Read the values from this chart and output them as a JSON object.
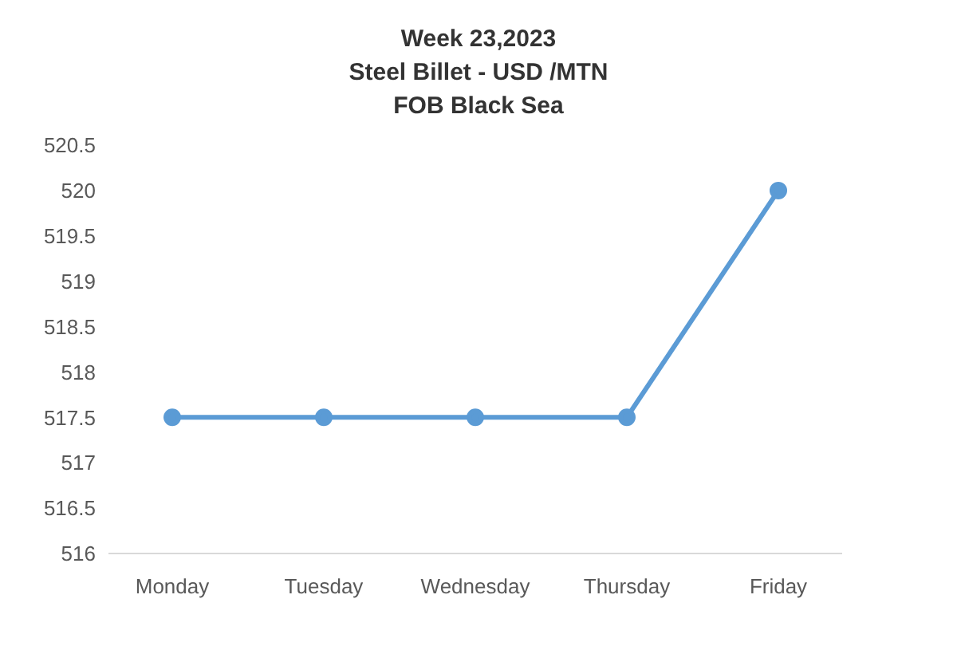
{
  "chart_data": {
    "type": "line",
    "title": "Week 23,2023\nSteel Billet - USD /MTN\nFOB Black Sea",
    "categories": [
      "Monday",
      "Tuesday",
      "Wednesday",
      "Thursday",
      "Friday"
    ],
    "series": [
      {
        "color": "#5b9bd5",
        "values": [
          517.5,
          517.5,
          517.5,
          517.5,
          520
        ]
      }
    ],
    "ylim": [
      516,
      520.5
    ],
    "yticks": [
      516,
      516.5,
      517,
      517.5,
      518,
      518.5,
      519,
      519.5,
      520,
      520.5
    ],
    "marker": "circle",
    "line_style": "solid",
    "grid": false,
    "legend": false
  }
}
